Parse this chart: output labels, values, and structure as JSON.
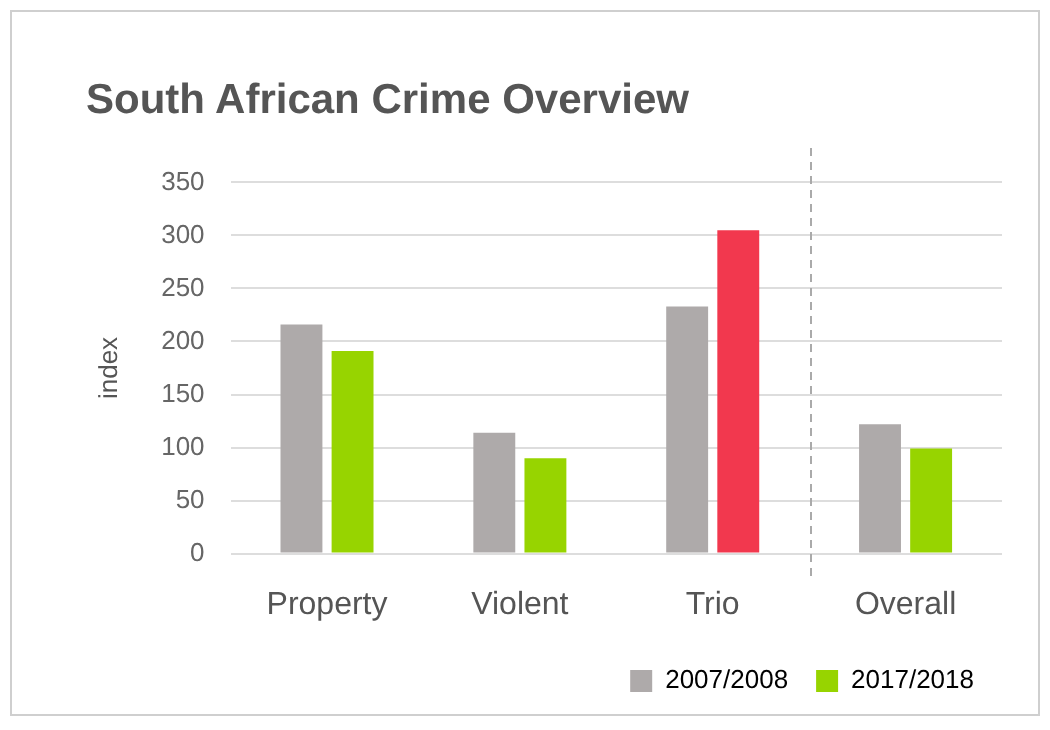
{
  "chart_data": {
    "type": "bar",
    "title": "South African Crime Overview",
    "ylabel": "index",
    "categories": [
      "Property",
      "Violent",
      "Trio",
      "Overall"
    ],
    "series": [
      {
        "name": "2007/2008",
        "color": "#aeaaaa",
        "values": [
          216,
          114,
          233,
          122
        ]
      },
      {
        "name": "2017/2018",
        "color": "#97d400",
        "colors": [
          "#97d400",
          "#97d400",
          "#f2384e",
          "#97d400"
        ],
        "values": [
          191,
          90,
          305,
          99
        ]
      }
    ],
    "ylim": [
      0,
      350
    ],
    "yticks": [
      0,
      50,
      100,
      150,
      200,
      250,
      300,
      350
    ],
    "grid": "y",
    "legend": "bottom right"
  }
}
